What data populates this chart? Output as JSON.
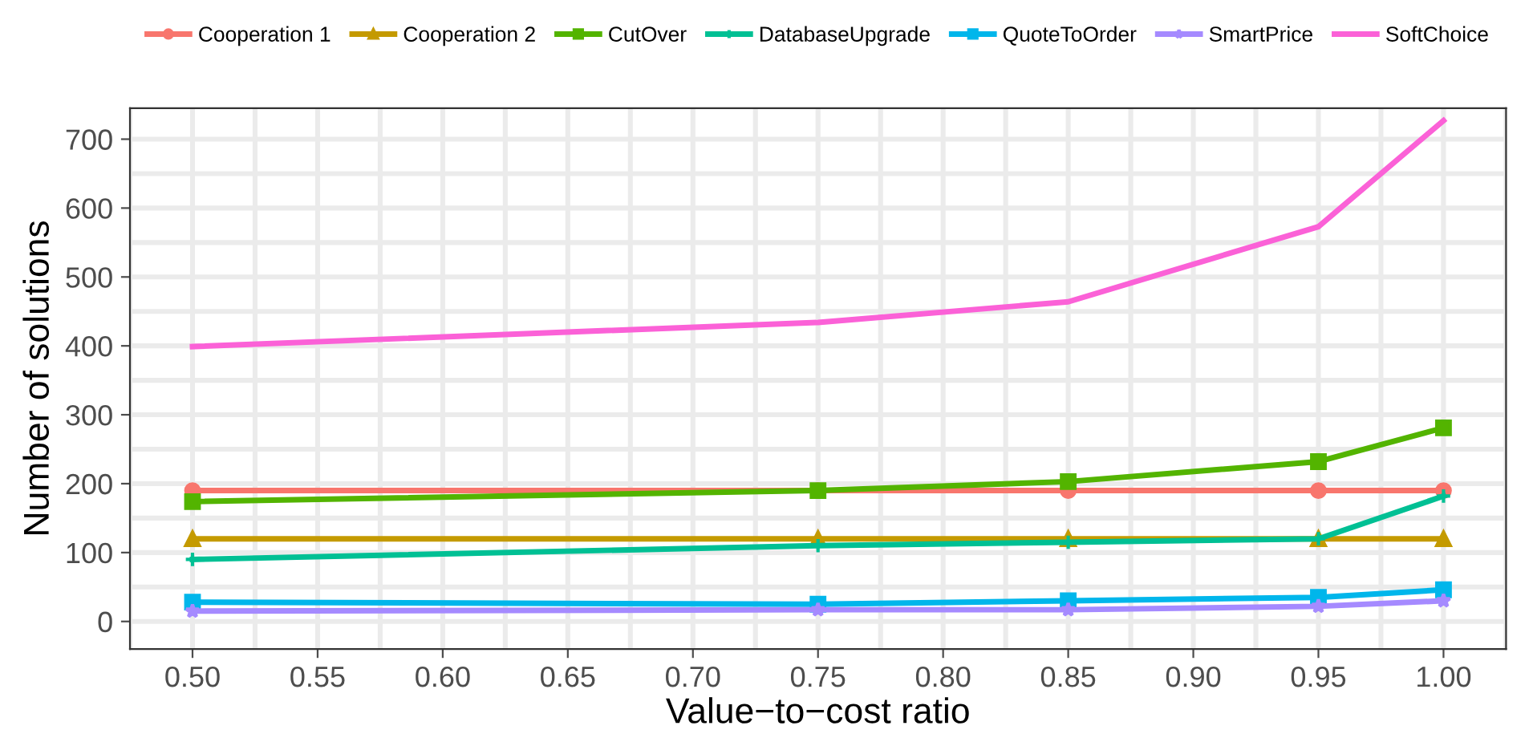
{
  "chart_data": {
    "type": "line",
    "xlabel": "Value−to−cost ratio",
    "ylabel": "Number of solutions",
    "x": [
      0.5,
      0.75,
      0.85,
      0.95,
      1.0
    ],
    "xlim": [
      0.475,
      1.025
    ],
    "xticks": [
      {
        "value": 0.5,
        "label": "0.50"
      },
      {
        "value": 0.55,
        "label": "0.55"
      },
      {
        "value": 0.6,
        "label": "0.60"
      },
      {
        "value": 0.65,
        "label": "0.65"
      },
      {
        "value": 0.7,
        "label": "0.70"
      },
      {
        "value": 0.75,
        "label": "0.75"
      },
      {
        "value": 0.8,
        "label": "0.80"
      },
      {
        "value": 0.85,
        "label": "0.85"
      },
      {
        "value": 0.9,
        "label": "0.90"
      },
      {
        "value": 0.95,
        "label": "0.95"
      },
      {
        "value": 1.0,
        "label": "1.00"
      }
    ],
    "ylim": [
      -40,
      745
    ],
    "yticks": [
      0,
      100,
      200,
      300,
      400,
      500,
      600,
      700
    ],
    "grid": true,
    "legend": "top",
    "line_style": "solid",
    "series": [
      {
        "name": "Cooperation 1",
        "color": "#f8766d",
        "marker": "circle",
        "values": [
          190,
          190,
          190,
          190,
          190
        ]
      },
      {
        "name": "Cooperation 2",
        "color": "#c49a00",
        "marker": "triangle",
        "values": [
          120,
          120,
          120,
          120,
          120
        ]
      },
      {
        "name": "CutOver",
        "color": "#53b400",
        "marker": "square",
        "values": [
          174,
          190,
          203,
          232,
          281
        ]
      },
      {
        "name": "DatabaseUpgrade",
        "color": "#00c094",
        "marker": "cross",
        "values": [
          90,
          110,
          115,
          120,
          182
        ]
      },
      {
        "name": "QuoteToOrder",
        "color": "#00b6eb",
        "marker": "square",
        "values": [
          28,
          25,
          30,
          35,
          46
        ]
      },
      {
        "name": "SmartPrice",
        "color": "#a58aff",
        "marker": "star",
        "values": [
          15,
          17,
          17,
          22,
          30
        ]
      },
      {
        "name": "SoftChoice",
        "color": "#fb61d7",
        "marker": "none",
        "values": [
          399,
          434,
          464,
          573,
          727
        ]
      }
    ]
  }
}
